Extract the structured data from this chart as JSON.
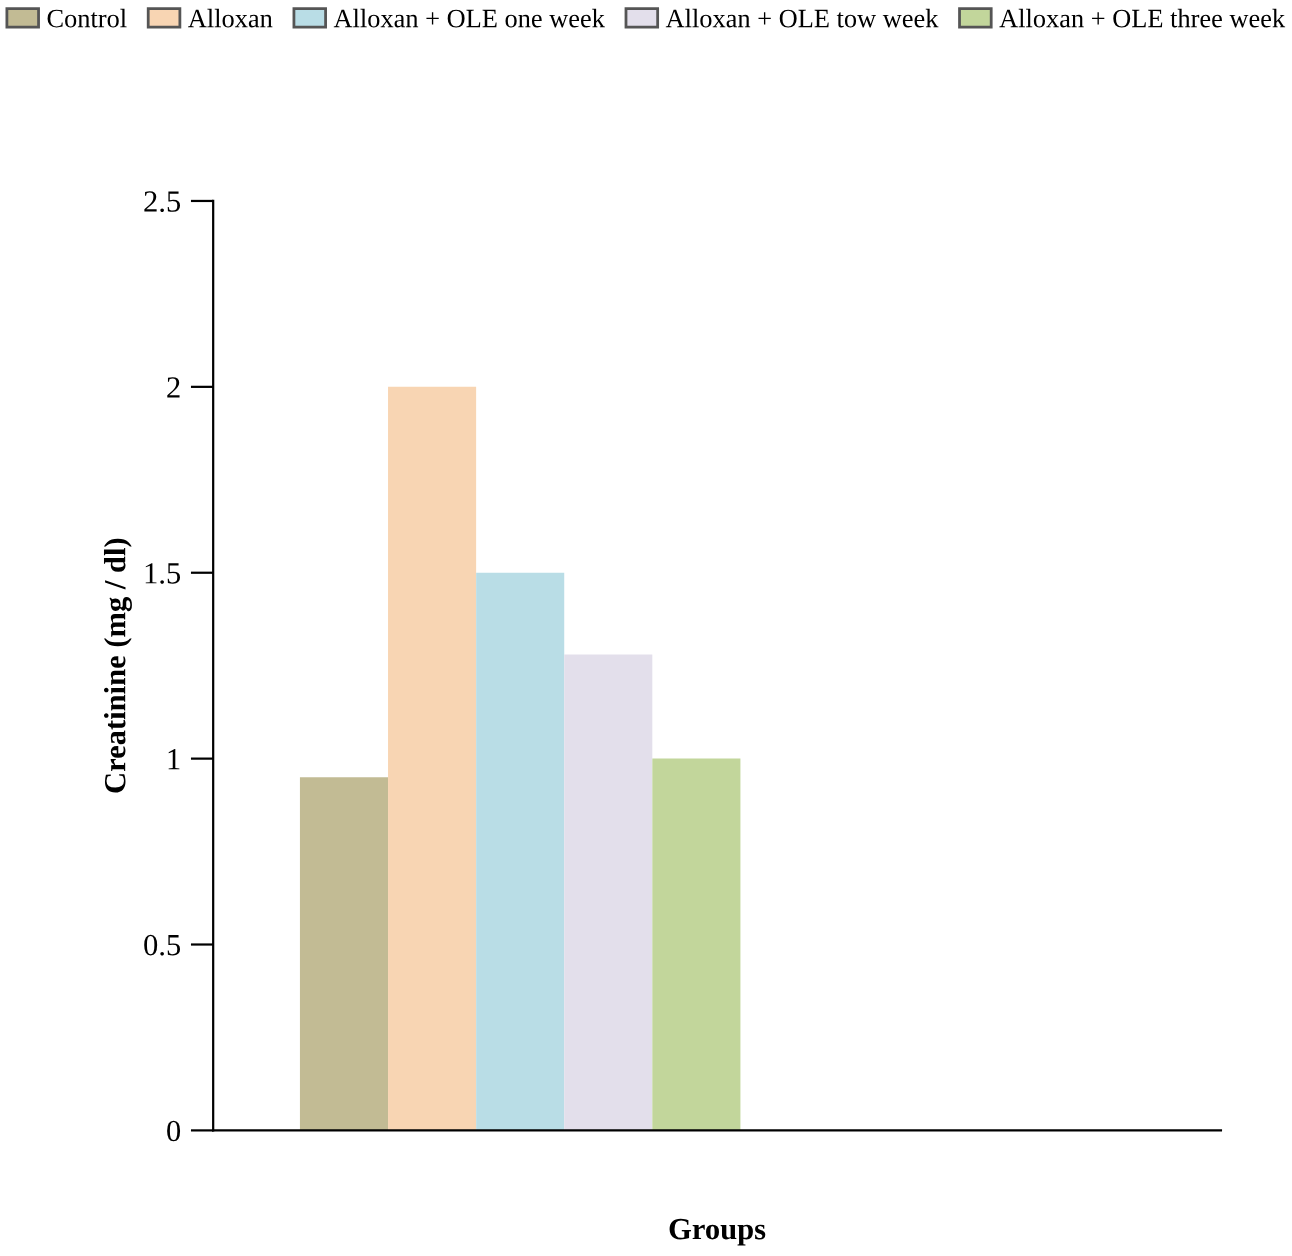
{
  "chart_data": {
    "type": "bar",
    "categories": [
      null
    ],
    "xlabel": "Groups",
    "ylabel": "Creatinine (mg / dl)",
    "series": [
      {
        "name": "Control",
        "color": "#c2bb94",
        "values": [
          0.95
        ]
      },
      {
        "name": "Alloxan",
        "color": "#f8d5b3",
        "values": [
          2.0
        ]
      },
      {
        "name": "Alloxan + OLE one week",
        "color": "#b9dde6",
        "values": [
          1.5
        ]
      },
      {
        "name": "Alloxan + OLE tow week",
        "color": "#e3dfeb",
        "values": [
          1.28
        ]
      },
      {
        "name": "Alloxan + OLE three week",
        "color": "#c2d69b",
        "values": [
          1.0
        ]
      }
    ],
    "ylim": [
      0,
      2.5
    ],
    "yticks": [
      0,
      0.5,
      1,
      1.5,
      2,
      2.5
    ],
    "legend": "top",
    "grid": false
  }
}
